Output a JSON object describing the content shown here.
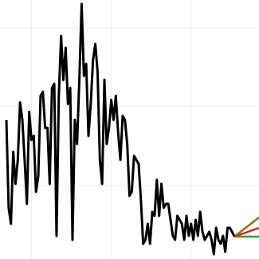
{
  "chart_data": {
    "type": "line",
    "xlim": [
      -2.8,
      110.8
    ],
    "ylim": [
      0,
      324
    ],
    "xticks": [
      11,
      46,
      81
    ],
    "yticks": [
      92,
      191,
      289
    ],
    "grid": true,
    "series": [
      {
        "color": "#000000",
        "values": [
          174,
          64,
          44,
          134,
          94,
          124,
          196,
          174,
          124,
          69,
          184,
          149,
          154,
          84,
          104,
          204,
          209,
          164,
          164,
          94,
          214,
          219,
          29,
          204,
          279,
          224,
          264,
          194,
          214,
          24,
          174,
          144,
          224,
          319,
          229,
          244,
          154,
          194,
          249,
          269,
          234,
          124,
          94,
          224,
          144,
          164,
          199,
          174,
          204,
          159,
          124,
          179,
          174,
          144,
          79,
          84,
          129,
          124,
          119,
          74,
          19,
          24,
          44,
          19,
          59,
          54,
          99,
          54,
          94,
          64,
          69,
          69,
          49,
          29,
          24,
          54,
          49,
          44,
          24,
          54,
          29,
          44,
          24,
          49,
          29,
          59,
          34,
          24,
          29,
          34,
          24,
          6,
          39,
          24,
          19,
          29,
          9,
          39,
          39,
          34,
          28
        ]
      },
      {
        "color": "#9a6a1e",
        "x": [
          100,
          110.8
        ],
        "values": [
          28,
          52
        ]
      },
      {
        "color": "#e02020",
        "x": [
          100,
          110.8
        ],
        "values": [
          28,
          39
        ]
      },
      {
        "color": "#2ca02c",
        "x": [
          100,
          110.8
        ],
        "values": [
          28,
          28
        ]
      }
    ]
  }
}
